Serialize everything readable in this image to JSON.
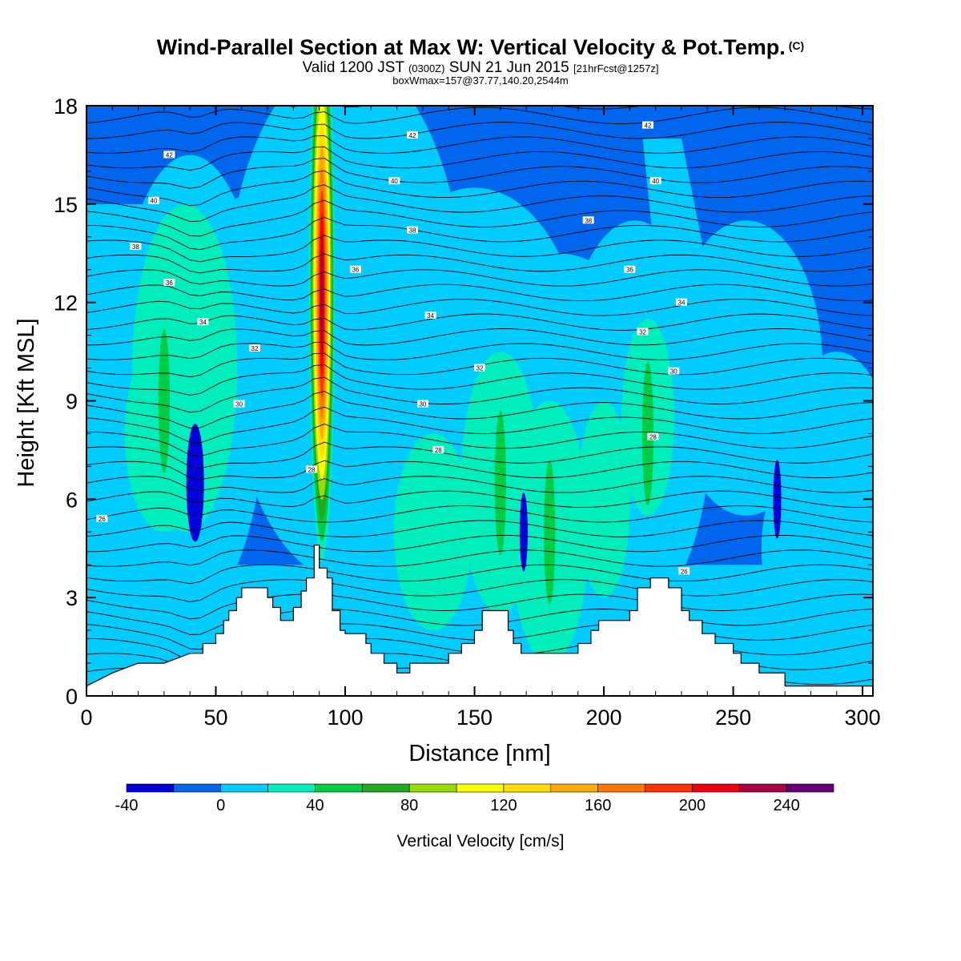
{
  "header": {
    "title": "Wind-Parallel Section at Max W: Vertical Velocity & Pot.Temp.",
    "copyright_mark": "(C)",
    "subtitle_a": "Valid 1200 JST ",
    "subtitle_b": "(0300Z)",
    "subtitle_c": " SUN 21 Jun 2015 ",
    "subtitle_d": "[21hrFcst@1257z]",
    "subtitle2": "boxWmax=157@37.77,140.20,2544m"
  },
  "chart_data": {
    "type": "heatmap",
    "xlabel": "Distance [nm]",
    "ylabel": "Height [Kft MSL]",
    "xlim": [
      0,
      304
    ],
    "ylim": [
      0,
      18
    ],
    "x_ticks": [
      "0",
      "50",
      "100",
      "150",
      "200",
      "250",
      "300"
    ],
    "y_ticks": [
      "0",
      "3",
      "6",
      "9",
      "12",
      "15",
      "18"
    ],
    "colorbar": {
      "label": "Vertical Velocity [cm/s]",
      "tick_labels": [
        "-40",
        "0",
        "40",
        "80",
        "120",
        "160",
        "200",
        "240"
      ],
      "levels": [
        -40,
        -20,
        0,
        20,
        40,
        60,
        80,
        100,
        120,
        140,
        160,
        180,
        200,
        220,
        240,
        260
      ],
      "colors": [
        "#0000dd",
        "#0066ee",
        "#00ccff",
        "#00eebb",
        "#00cc44",
        "#22aa22",
        "#99dd00",
        "#ffff00",
        "#ffdd00",
        "#ffaa00",
        "#ff7700",
        "#ff3300",
        "#ee0011",
        "#aa0044",
        "#660077"
      ]
    },
    "background_value_cm_s": -10,
    "updraft_cores": [
      {
        "distance_nm": 91,
        "height_kft": 12.5,
        "w_cm_s": 230
      },
      {
        "distance_nm": 160,
        "height_kft": 6.5,
        "w_cm_s": 50
      },
      {
        "distance_nm": 179,
        "height_kft": 5.0,
        "w_cm_s": 50
      },
      {
        "distance_nm": 217,
        "height_kft": 8.0,
        "w_cm_s": 45
      },
      {
        "distance_nm": 30,
        "height_kft": 9.0,
        "w_cm_s": 45
      }
    ],
    "downdraft_cores": [
      {
        "distance_nm": 42,
        "height_kft": 6.5,
        "w_cm_s": -35
      },
      {
        "distance_nm": 169,
        "height_kft": 5.0,
        "w_cm_s": -30
      },
      {
        "distance_nm": 267,
        "height_kft": 6.0,
        "w_cm_s": -25
      }
    ],
    "terrain_kft": [
      [
        0,
        0.3
      ],
      [
        10,
        0.7
      ],
      [
        20,
        1.0
      ],
      [
        30,
        1.0
      ],
      [
        29,
        1.0
      ],
      [
        30,
        1.0
      ],
      [
        40,
        1.3
      ],
      [
        40,
        1.3
      ],
      [
        45,
        1.3
      ],
      [
        45,
        1.6
      ],
      [
        50,
        1.6
      ],
      [
        50,
        1.9
      ],
      [
        53,
        1.9
      ],
      [
        53,
        2.3
      ],
      [
        55,
        2.3
      ],
      [
        55,
        2.6
      ],
      [
        58,
        2.6
      ],
      [
        58,
        3.0
      ],
      [
        60,
        3.0
      ],
      [
        60,
        3.3
      ],
      [
        63,
        3.3
      ],
      [
        63,
        3.3
      ],
      [
        70,
        3.3
      ],
      [
        70,
        3.0
      ],
      [
        72,
        3.0
      ],
      [
        72,
        2.7
      ],
      [
        75,
        2.7
      ],
      [
        75,
        2.3
      ],
      [
        80,
        2.3
      ],
      [
        80,
        2.7
      ],
      [
        83,
        2.7
      ],
      [
        83,
        3.2
      ],
      [
        85,
        3.2
      ],
      [
        85,
        3.6
      ],
      [
        88,
        3.6
      ],
      [
        88,
        4.6
      ],
      [
        90,
        4.6
      ],
      [
        90,
        3.9
      ],
      [
        93,
        3.9
      ],
      [
        93,
        3.6
      ],
      [
        95,
        3.6
      ],
      [
        95,
        2.6
      ],
      [
        98,
        2.6
      ],
      [
        98,
        2.0
      ],
      [
        100,
        2.0
      ],
      [
        100,
        1.9
      ],
      [
        108,
        1.9
      ],
      [
        108,
        1.6
      ],
      [
        110,
        1.6
      ],
      [
        110,
        1.3
      ],
      [
        115,
        1.3
      ],
      [
        115,
        1.0
      ],
      [
        120,
        1.0
      ],
      [
        120,
        0.7
      ],
      [
        125,
        0.7
      ],
      [
        125,
        1.0
      ],
      [
        130,
        1.0
      ],
      [
        130,
        1.0
      ],
      [
        140,
        1.0
      ],
      [
        140,
        1.3
      ],
      [
        145,
        1.3
      ],
      [
        145,
        1.6
      ],
      [
        150,
        1.6
      ],
      [
        150,
        2.0
      ],
      [
        153,
        2.0
      ],
      [
        153,
        2.6
      ],
      [
        160,
        2.6
      ],
      [
        160,
        2.6
      ],
      [
        163,
        2.6
      ],
      [
        163,
        2.0
      ],
      [
        165,
        2.0
      ],
      [
        165,
        1.6
      ],
      [
        168,
        1.6
      ],
      [
        168,
        1.3
      ],
      [
        190,
        1.3
      ],
      [
        190,
        1.6
      ],
      [
        195,
        1.6
      ],
      [
        195,
        2.0
      ],
      [
        198,
        2.0
      ],
      [
        198,
        2.3
      ],
      [
        210,
        2.3
      ],
      [
        210,
        2.6
      ],
      [
        213,
        2.6
      ],
      [
        213,
        3.3
      ],
      [
        218,
        3.3
      ],
      [
        218,
        3.6
      ],
      [
        225,
        3.6
      ],
      [
        225,
        3.3
      ],
      [
        230,
        3.3
      ],
      [
        230,
        2.6
      ],
      [
        233,
        2.6
      ],
      [
        233,
        2.3
      ],
      [
        238,
        2.3
      ],
      [
        238,
        1.9
      ],
      [
        243,
        1.9
      ],
      [
        243,
        1.6
      ],
      [
        250,
        1.6
      ],
      [
        250,
        1.3
      ],
      [
        253,
        1.3
      ],
      [
        253,
        1.0
      ],
      [
        260,
        1.0
      ],
      [
        260,
        0.7
      ],
      [
        270,
        0.7
      ],
      [
        270,
        0.3
      ],
      [
        304,
        0.3
      ]
    ],
    "theta_contours_c": [
      {
        "value": "42",
        "x_nm": 32,
        "height_kft": 16.5
      },
      {
        "value": "40",
        "x_nm": 26,
        "height_kft": 15.1
      },
      {
        "value": "38",
        "x_nm": 19,
        "height_kft": 13.7
      },
      {
        "value": "36",
        "x_nm": 32,
        "height_kft": 12.6
      },
      {
        "value": "34",
        "x_nm": 45,
        "height_kft": 11.4
      },
      {
        "value": "32",
        "x_nm": 65,
        "height_kft": 10.6
      },
      {
        "value": "30",
        "x_nm": 59,
        "height_kft": 8.9
      },
      {
        "value": "26",
        "x_nm": 6,
        "height_kft": 5.4
      },
      {
        "value": "42",
        "x_nm": 126,
        "height_kft": 17.1
      },
      {
        "value": "40",
        "x_nm": 119,
        "height_kft": 15.7
      },
      {
        "value": "38",
        "x_nm": 126,
        "height_kft": 14.2
      },
      {
        "value": "36",
        "x_nm": 104,
        "height_kft": 13.0
      },
      {
        "value": "34",
        "x_nm": 133,
        "height_kft": 11.6
      },
      {
        "value": "32",
        "x_nm": 152,
        "height_kft": 10.0
      },
      {
        "value": "30",
        "x_nm": 130,
        "height_kft": 8.9
      },
      {
        "value": "28",
        "x_nm": 136,
        "height_kft": 7.5
      },
      {
        "value": "28",
        "x_nm": 87,
        "height_kft": 6.9
      },
      {
        "value": "42",
        "x_nm": 217,
        "height_kft": 17.4
      },
      {
        "value": "40",
        "x_nm": 220,
        "height_kft": 15.7
      },
      {
        "value": "38",
        "x_nm": 194,
        "height_kft": 14.5
      },
      {
        "value": "36",
        "x_nm": 210,
        "height_kft": 13.0
      },
      {
        "value": "34",
        "x_nm": 230,
        "height_kft": 12.0
      },
      {
        "value": "32",
        "x_nm": 215,
        "height_kft": 11.1
      },
      {
        "value": "30",
        "x_nm": 227,
        "height_kft": 9.9
      },
      {
        "value": "28",
        "x_nm": 219,
        "height_kft": 7.9
      },
      {
        "value": "26",
        "x_nm": 231,
        "height_kft": 3.8
      }
    ]
  }
}
